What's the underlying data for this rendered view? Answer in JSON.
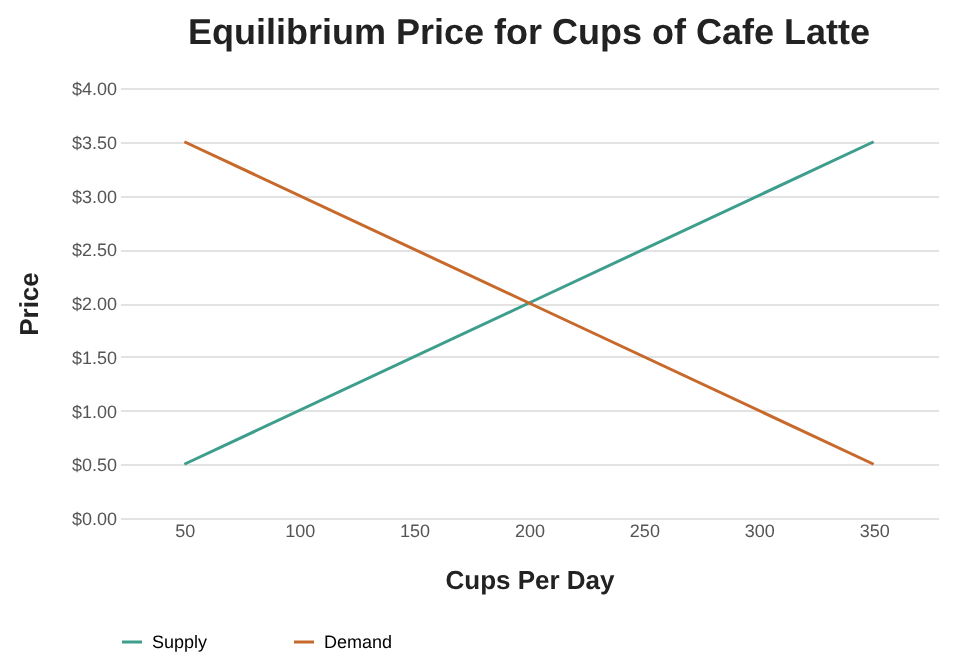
{
  "chart_data": {
    "type": "line",
    "title": "Equilibrium Price for Cups of Cafe Latte",
    "xlabel": "Cups Per Day",
    "ylabel": "Price",
    "x": [
      50,
      200,
      350
    ],
    "series": [
      {
        "name": "Supply",
        "color": "#3e9e8e",
        "values": [
          0.5,
          2,
          3.5
        ]
      },
      {
        "name": "Demand",
        "color": "#c8692c",
        "values": [
          3.5,
          2,
          0.5
        ]
      }
    ],
    "xlim": [
      22,
      378
    ],
    "xticks": [
      50,
      100,
      150,
      200,
      250,
      300,
      350
    ],
    "ylim": [
      0,
      4
    ],
    "yticks": [
      {
        "value": 0,
        "label": "$0.00"
      },
      {
        "value": 0.5,
        "label": "$0.50"
      },
      {
        "value": 1,
        "label": "$1.00"
      },
      {
        "value": 1.5,
        "label": "$1.50"
      },
      {
        "value": 2,
        "label": "$2.00"
      },
      {
        "value": 2.5,
        "label": "$2.50"
      },
      {
        "value": 3,
        "label": "$3.00"
      },
      {
        "value": 3.5,
        "label": "$3.50"
      },
      {
        "value": 4,
        "label": "$4.00"
      }
    ],
    "grid": "y",
    "legend": "bottom",
    "marker": "none",
    "line_style": "solid"
  }
}
